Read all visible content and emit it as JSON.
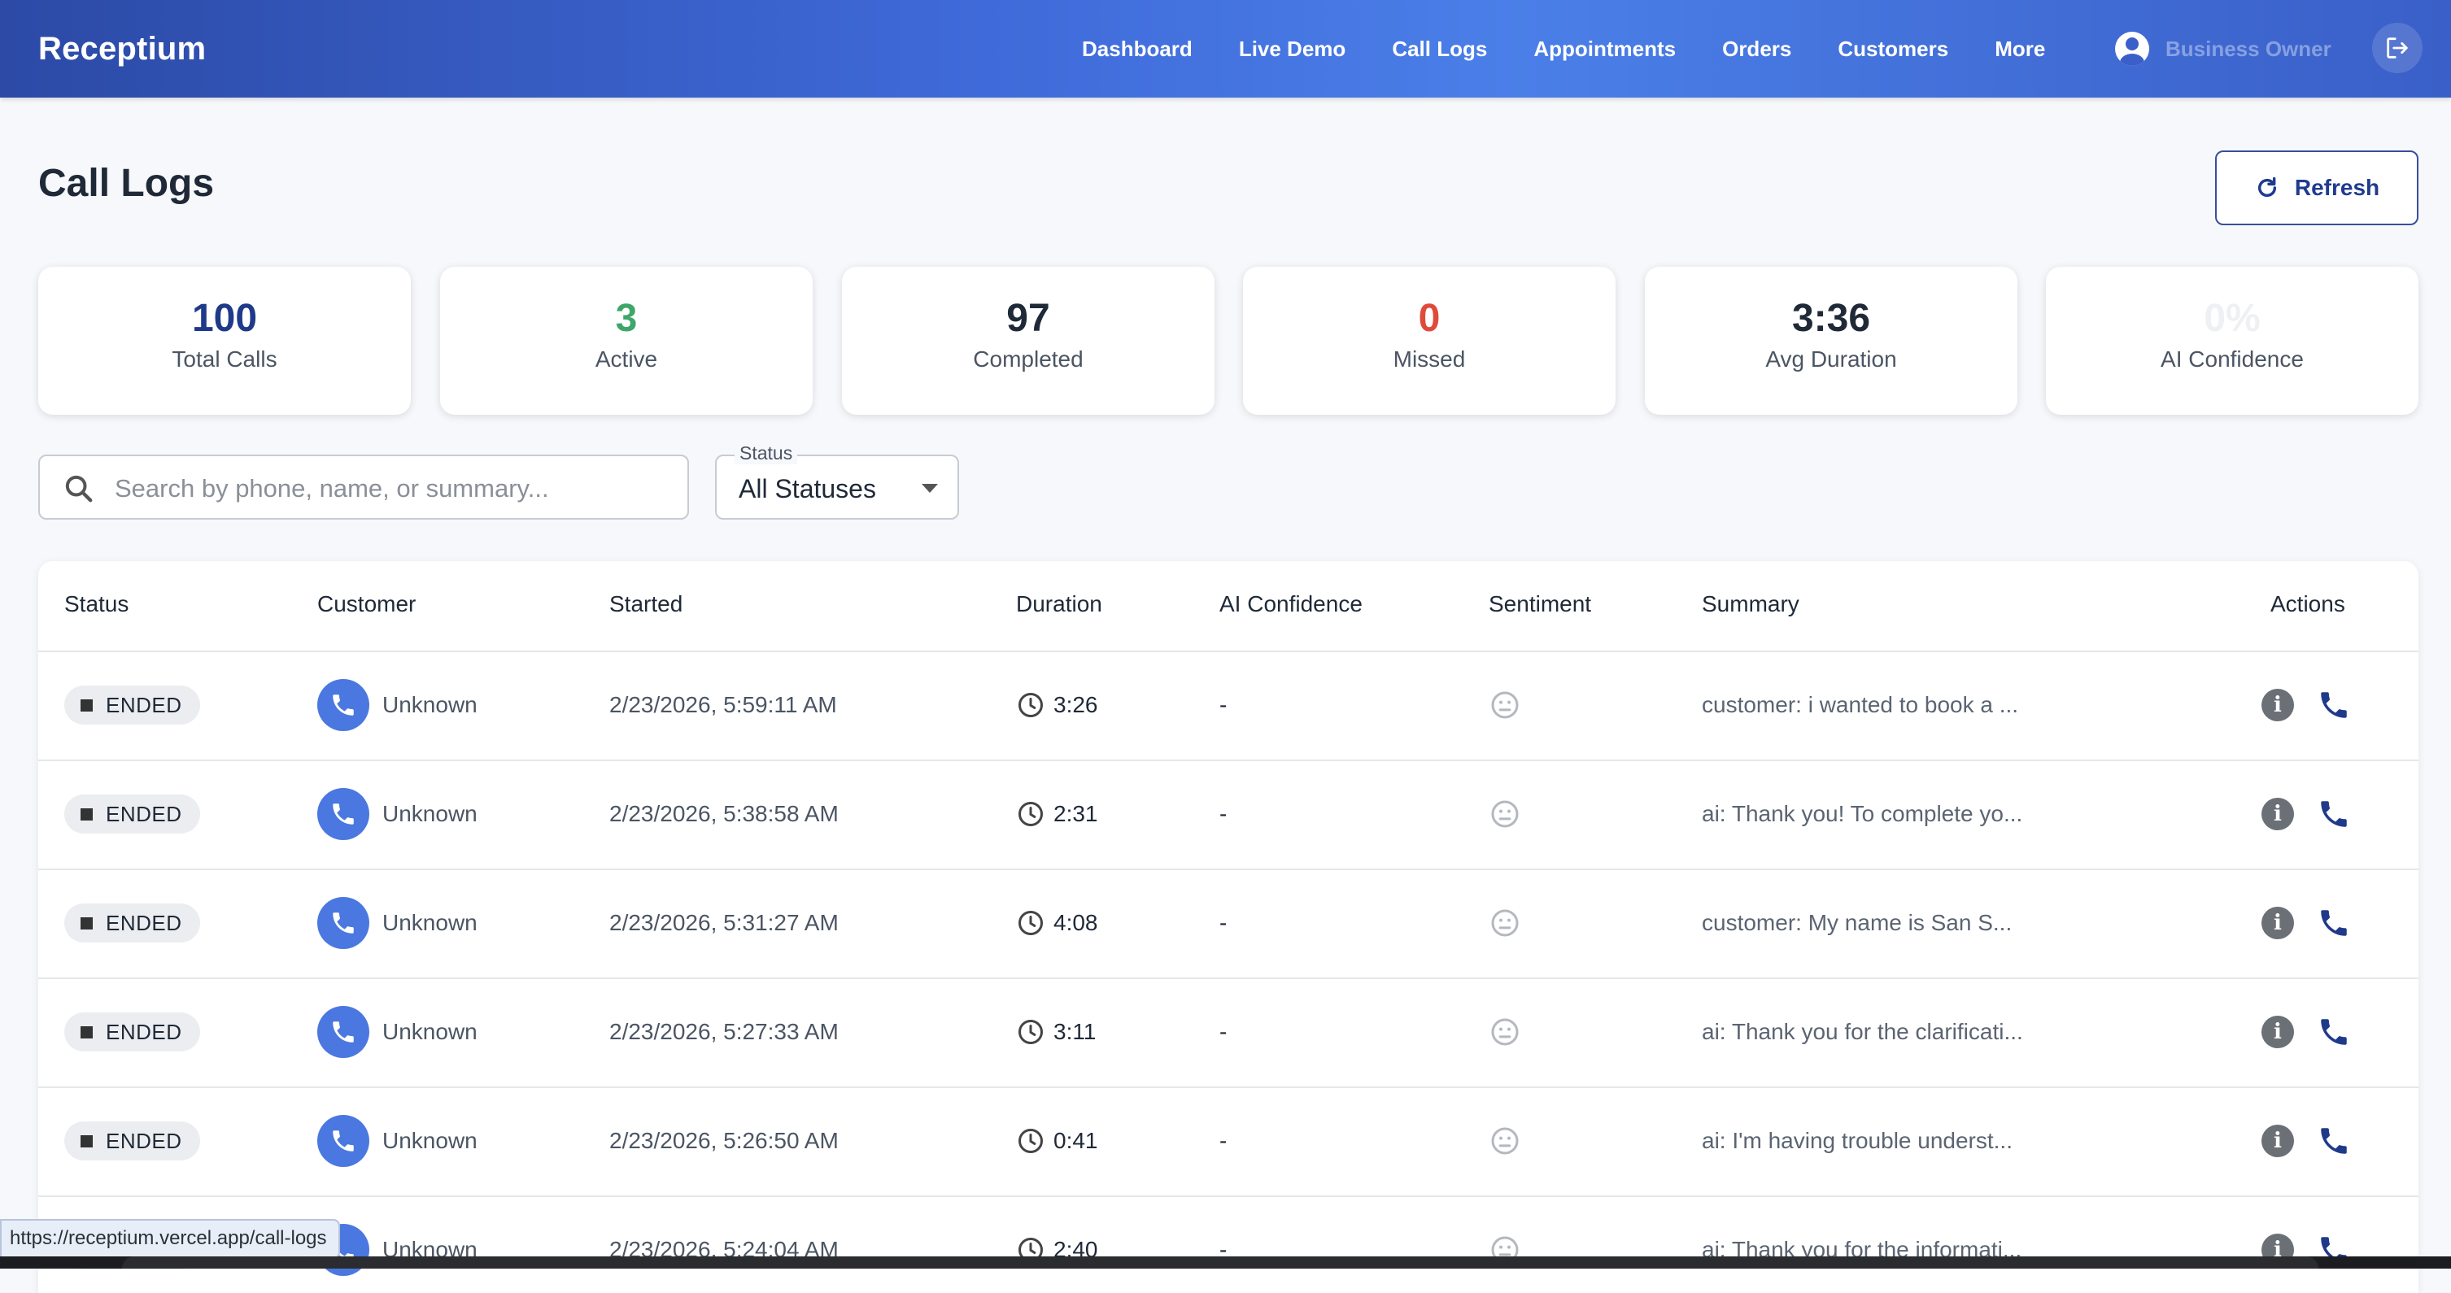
{
  "app": {
    "brand": "Receptium"
  },
  "nav": {
    "items": [
      "Dashboard",
      "Live Demo",
      "Call Logs",
      "Appointments",
      "Orders",
      "Customers",
      "More"
    ]
  },
  "user": {
    "name": "Business Owner"
  },
  "page": {
    "title": "Call Logs",
    "refresh_label": "Refresh"
  },
  "stats": [
    {
      "value": "100",
      "label": "Total Calls",
      "color": "#1f3a8a"
    },
    {
      "value": "3",
      "label": "Active",
      "color": "#3fa66a"
    },
    {
      "value": "97",
      "label": "Completed",
      "color": "#1f2937"
    },
    {
      "value": "0",
      "label": "Missed",
      "color": "#e04a3a"
    },
    {
      "value": "3:36",
      "label": "Avg Duration",
      "color": "#1f2937"
    },
    {
      "value": "0%",
      "label": "AI Confidence",
      "color": "#eef0f3"
    }
  ],
  "search": {
    "placeholder": "Search by phone, name, or summary..."
  },
  "filter": {
    "label": "Status",
    "value": "All Statuses"
  },
  "table": {
    "columns": [
      "Status",
      "Customer",
      "Started",
      "Duration",
      "AI Confidence",
      "Sentiment",
      "Summary",
      "Actions"
    ],
    "rows": [
      {
        "status": "ENDED",
        "customer": "Unknown",
        "started": "2/23/2026, 5:59:11 AM",
        "duration": "3:26",
        "confidence": "-",
        "summary": "customer: i wanted to book a ..."
      },
      {
        "status": "ENDED",
        "customer": "Unknown",
        "started": "2/23/2026, 5:38:58 AM",
        "duration": "2:31",
        "confidence": "-",
        "summary": "ai: Thank you! To complete yo..."
      },
      {
        "status": "ENDED",
        "customer": "Unknown",
        "started": "2/23/2026, 5:31:27 AM",
        "duration": "4:08",
        "confidence": "-",
        "summary": "customer: My name is San S..."
      },
      {
        "status": "ENDED",
        "customer": "Unknown",
        "started": "2/23/2026, 5:27:33 AM",
        "duration": "3:11",
        "confidence": "-",
        "summary": "ai: Thank you for the clarificati..."
      },
      {
        "status": "ENDED",
        "customer": "Unknown",
        "started": "2/23/2026, 5:26:50 AM",
        "duration": "0:41",
        "confidence": "-",
        "summary": "ai: I'm having trouble underst..."
      },
      {
        "status": "ENDED",
        "customer": "Unknown",
        "started": "2/23/2026, 5:24:04 AM",
        "duration": "2:40",
        "confidence": "-",
        "summary": "ai: Thank you for the informati..."
      }
    ]
  },
  "status_url": "https://receptium.vercel.app/call-logs"
}
